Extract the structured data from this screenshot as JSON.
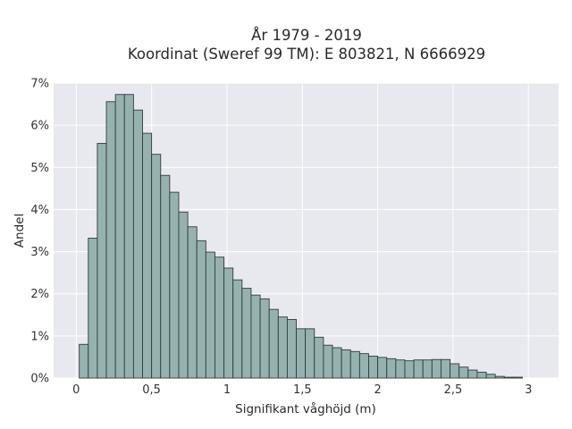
{
  "chart_data": {
    "type": "bar",
    "title": "År 1979 - 2019",
    "subtitle": "Koordinat (Sweref 99 TM): E 803821, N 6666929",
    "xlabel": "Signifikant våghöjd (m)",
    "ylabel": "Andel",
    "xlim": [
      -0.15,
      3.2
    ],
    "ylim": [
      0,
      7
    ],
    "x_ticks": [
      0,
      0.5,
      1,
      1.5,
      2,
      2.5,
      3
    ],
    "x_tick_labels": [
      "0",
      "0,5",
      "1",
      "1,5",
      "2",
      "2,5",
      "3"
    ],
    "y_ticks": [
      0,
      1,
      2,
      3,
      4,
      5,
      6,
      7
    ],
    "y_tick_labels": [
      "0%",
      "1%",
      "2%",
      "3%",
      "4%",
      "5%",
      "6%",
      "7%"
    ],
    "bin_width": 0.06,
    "bin_start": 0.02,
    "values": [
      0.8,
      3.32,
      5.57,
      6.56,
      6.73,
      6.73,
      6.36,
      5.81,
      5.31,
      4.81,
      4.41,
      3.94,
      3.59,
      3.26,
      2.99,
      2.87,
      2.61,
      2.33,
      2.13,
      1.97,
      1.88,
      1.63,
      1.45,
      1.39,
      1.17,
      1.17,
      0.97,
      0.78,
      0.72,
      0.67,
      0.63,
      0.58,
      0.52,
      0.49,
      0.46,
      0.43,
      0.41,
      0.43,
      0.43,
      0.44,
      0.44,
      0.34,
      0.26,
      0.19,
      0.14,
      0.09,
      0.04,
      0.02,
      0.02
    ],
    "grid": true,
    "colors": {
      "bar_fill": "#96b2b0",
      "bar_edge": "#2f3d3b",
      "plot_bg": "#e8e8ef",
      "grid": "#ffffff"
    }
  }
}
